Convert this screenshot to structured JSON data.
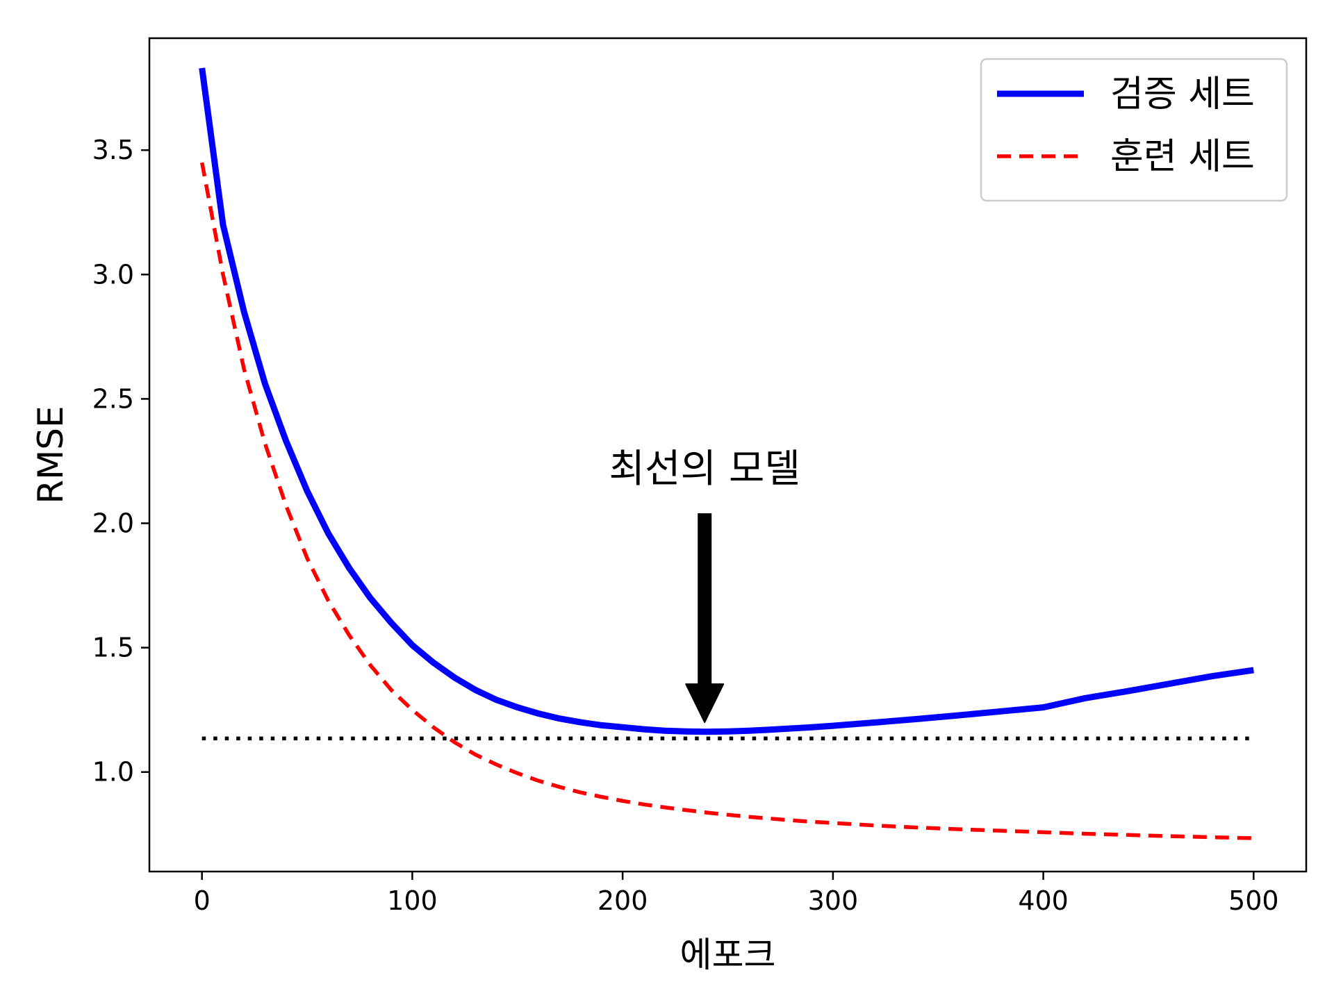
{
  "chart_data": {
    "type": "line",
    "title": "",
    "xlabel": "에포크",
    "ylabel": "RMSE",
    "xlim": [
      -25,
      525
    ],
    "ylim": [
      0.6,
      3.95
    ],
    "xticks": [
      0,
      100,
      200,
      300,
      400,
      500
    ],
    "yticks": [
      1.0,
      1.5,
      2.0,
      2.5,
      3.0,
      3.5
    ],
    "xtick_labels": [
      "0",
      "100",
      "200",
      "300",
      "400",
      "500"
    ],
    "ytick_labels": [
      "1.0",
      "1.5",
      "2.0",
      "2.5",
      "3.0",
      "3.5"
    ],
    "grid": false,
    "legend_position": "top-right",
    "series": [
      {
        "name": "검증 세트",
        "style": "solid",
        "color": "#0000ff",
        "x": [
          0,
          10,
          20,
          30,
          40,
          50,
          60,
          70,
          80,
          90,
          100,
          110,
          120,
          130,
          140,
          150,
          160,
          170,
          180,
          190,
          200,
          210,
          220,
          230,
          240,
          250,
          260,
          270,
          280,
          290,
          300,
          320,
          340,
          360,
          380,
          400,
          420,
          440,
          460,
          480,
          500
        ],
        "y": [
          3.83,
          3.2,
          2.85,
          2.56,
          2.33,
          2.13,
          1.96,
          1.82,
          1.7,
          1.6,
          1.51,
          1.44,
          1.38,
          1.33,
          1.29,
          1.26,
          1.235,
          1.215,
          1.2,
          1.188,
          1.18,
          1.172,
          1.166,
          1.163,
          1.162,
          1.163,
          1.166,
          1.17,
          1.175,
          1.18,
          1.186,
          1.199,
          1.213,
          1.228,
          1.244,
          1.26,
          1.297,
          1.325,
          1.355,
          1.385,
          1.41
        ]
      },
      {
        "name": "훈련 세트",
        "style": "dashed",
        "color": "#ff0000",
        "x": [
          0,
          10,
          20,
          30,
          40,
          50,
          60,
          70,
          80,
          90,
          100,
          110,
          120,
          130,
          140,
          150,
          160,
          170,
          180,
          190,
          200,
          210,
          220,
          230,
          240,
          250,
          260,
          270,
          280,
          290,
          300,
          320,
          340,
          360,
          380,
          400,
          420,
          440,
          460,
          480,
          500
        ],
        "y": [
          3.45,
          3.0,
          2.62,
          2.32,
          2.07,
          1.86,
          1.69,
          1.55,
          1.43,
          1.33,
          1.25,
          1.18,
          1.12,
          1.07,
          1.03,
          0.995,
          0.965,
          0.94,
          0.918,
          0.9,
          0.884,
          0.87,
          0.858,
          0.847,
          0.837,
          0.828,
          0.82,
          0.813,
          0.806,
          0.8,
          0.795,
          0.785,
          0.777,
          0.77,
          0.764,
          0.758,
          0.752,
          0.747,
          0.742,
          0.738,
          0.734
        ]
      },
      {
        "name": "",
        "style": "dotted",
        "color": "#000000",
        "x": [
          0,
          500
        ],
        "y": [
          1.135,
          1.135
        ]
      }
    ],
    "annotations": [
      {
        "text": "최선의 모델",
        "arrow_to": {
          "x": 239,
          "y": 1.2
        },
        "arrow_from": {
          "x": 239,
          "y": 2.04
        }
      }
    ]
  }
}
